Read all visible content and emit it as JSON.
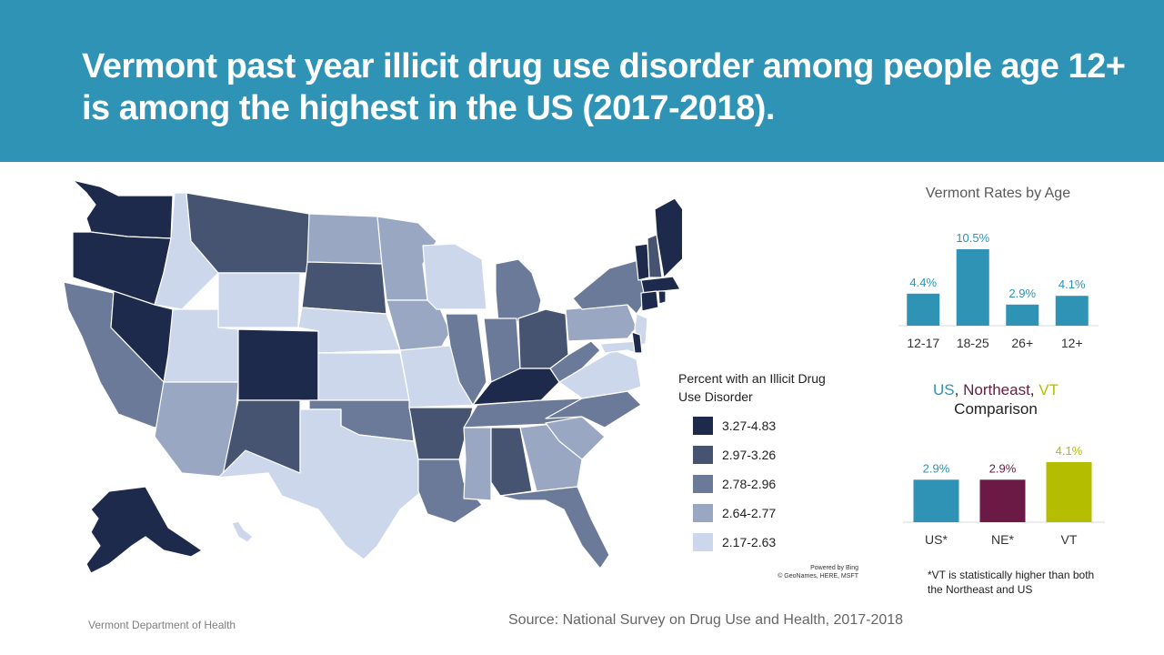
{
  "header": {
    "title": "Vermont past year illicit drug use disorder among people age 12+ is among the highest in the US (2017-2018)."
  },
  "colors": {
    "banner": "#2f93b5",
    "bar_vt_age": "#2f93b5",
    "us": "#2f93b5",
    "ne": "#6b1a45",
    "vt": "#b4bd00",
    "bin1": "#1d2a4b",
    "bin2": "#475471",
    "bin3": "#6c7a99",
    "bin4": "#9aa7c2",
    "bin5": "#ccd7ec"
  },
  "map": {
    "legend_title": "Percent with an Illicit Drug Use Disorder",
    "legend": [
      {
        "label": "3.27-4.83",
        "color": "#1d2a4b"
      },
      {
        "label": "2.97-3.26",
        "color": "#475471"
      },
      {
        "label": "2.78-2.96",
        "color": "#6c7a99"
      },
      {
        "label": "2.64-2.77",
        "color": "#9aa7c2"
      },
      {
        "label": "2.17-2.63",
        "color": "#ccd7ec"
      }
    ],
    "attribution": [
      "Powered by Bing",
      "© GeoNames, HERE, MSFT"
    ]
  },
  "chart_data": [
    {
      "type": "bar",
      "title": "Vermont Rates by Age",
      "categories": [
        "12-17",
        "18-25",
        "26+",
        "12+"
      ],
      "values": [
        4.4,
        10.5,
        2.9,
        4.1
      ],
      "data_labels": [
        "4.4%",
        "10.5%",
        "2.9%",
        "4.1%"
      ],
      "colors": [
        "#2f93b5",
        "#2f93b5",
        "#2f93b5",
        "#2f93b5"
      ]
    },
    {
      "type": "bar",
      "title_parts": [
        "US",
        ", ",
        "Northeast",
        ", ",
        "VT"
      ],
      "title_line2": "Comparison",
      "categories": [
        "US*",
        "NE*",
        "VT"
      ],
      "values": [
        2.9,
        2.9,
        4.1
      ],
      "data_labels": [
        "2.9%",
        "2.9%",
        "4.1%"
      ],
      "colors": [
        "#2f93b5",
        "#6b1a45",
        "#b4bd00"
      ]
    }
  ],
  "footnote": "*VT is statistically higher than both the Northeast and US",
  "footer": {
    "department": "Vermont Department of Health",
    "source": "Source: National Survey on Drug Use and Health, 2017-2018"
  }
}
